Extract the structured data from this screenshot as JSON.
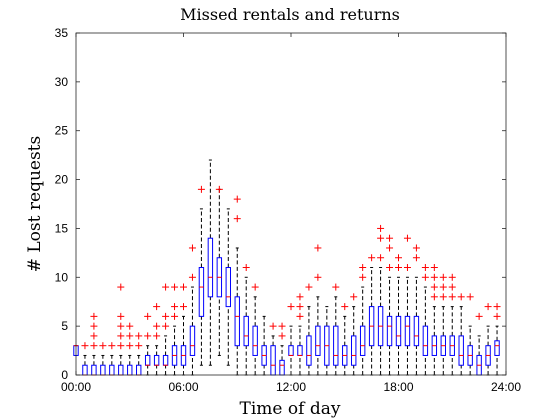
{
  "chart_data": {
    "type": "boxplot",
    "title": "Missed rentals and returns",
    "xlabel": "Time of day",
    "ylabel": "# Lost requests",
    "xlim": [
      0,
      24
    ],
    "ylim": [
      0,
      35
    ],
    "x_ticks": [
      0,
      6,
      12,
      18,
      24
    ],
    "x_tick_labels": [
      "00:00",
      "06:00",
      "12:00",
      "18:00",
      "24:00"
    ],
    "y_ticks": [
      0,
      5,
      10,
      15,
      20,
      25,
      30,
      35
    ],
    "y_tick_labels": [
      "0",
      "5",
      "10",
      "15",
      "20",
      "25",
      "30",
      "35"
    ],
    "grid": false,
    "colors": {
      "box": "#0000ff",
      "median": "#ff0000",
      "whisker": "#000000",
      "outlier": "#ff0000"
    },
    "boxes": [
      {
        "x": 0.0,
        "q1": 2,
        "median": 3,
        "q3": 3,
        "low": 2,
        "high": 3,
        "outliers": []
      },
      {
        "x": 0.5,
        "q1": 0,
        "median": 0,
        "q3": 1,
        "low": 0,
        "high": 2,
        "outliers": [
          3
        ]
      },
      {
        "x": 1.0,
        "q1": 0,
        "median": 0,
        "q3": 1,
        "low": 0,
        "high": 2,
        "outliers": [
          3,
          4,
          5,
          6
        ]
      },
      {
        "x": 1.5,
        "q1": 0,
        "median": 0,
        "q3": 1,
        "low": 0,
        "high": 2,
        "outliers": [
          3
        ]
      },
      {
        "x": 2.0,
        "q1": 0,
        "median": 0,
        "q3": 1,
        "low": 0,
        "high": 2,
        "outliers": [
          3
        ]
      },
      {
        "x": 2.5,
        "q1": 0,
        "median": 0,
        "q3": 1,
        "low": 0,
        "high": 2,
        "outliers": [
          3,
          4,
          5,
          6,
          9
        ]
      },
      {
        "x": 3.0,
        "q1": 0,
        "median": 0,
        "q3": 1,
        "low": 0,
        "high": 2,
        "outliers": [
          3,
          4,
          5
        ]
      },
      {
        "x": 3.5,
        "q1": 0,
        "median": 0,
        "q3": 1,
        "low": 0,
        "high": 2,
        "outliers": [
          3,
          4
        ]
      },
      {
        "x": 4.0,
        "q1": 1,
        "median": 1,
        "q3": 2,
        "low": 0,
        "high": 3,
        "outliers": [
          4,
          6
        ]
      },
      {
        "x": 4.5,
        "q1": 1,
        "median": 1,
        "q3": 2,
        "low": 0,
        "high": 3,
        "outliers": [
          4,
          5,
          7
        ]
      },
      {
        "x": 5.0,
        "q1": 1,
        "median": 1,
        "q3": 2,
        "low": 0,
        "high": 4,
        "outliers": [
          5,
          6,
          9
        ]
      },
      {
        "x": 5.5,
        "q1": 1,
        "median": 2,
        "q3": 3,
        "low": 0,
        "high": 5,
        "outliers": [
          6,
          7,
          9
        ]
      },
      {
        "x": 6.0,
        "q1": 1,
        "median": 2,
        "q3": 3,
        "low": 0,
        "high": 6,
        "outliers": [
          7,
          9
        ]
      },
      {
        "x": 6.5,
        "q1": 2,
        "median": 3,
        "q3": 5,
        "low": 0,
        "high": 9,
        "outliers": [
          10,
          13
        ]
      },
      {
        "x": 7.0,
        "q1": 6,
        "median": 9,
        "q3": 11,
        "low": 1,
        "high": 17,
        "outliers": [
          19
        ]
      },
      {
        "x": 7.5,
        "q1": 8,
        "median": 10,
        "q3": 14,
        "low": 1,
        "high": 22,
        "outliers": []
      },
      {
        "x": 8.0,
        "q1": 8,
        "median": 10,
        "q3": 12,
        "low": 2,
        "high": 19,
        "outliers": [
          19
        ]
      },
      {
        "x": 8.5,
        "q1": 7,
        "median": 8,
        "q3": 11,
        "low": 1,
        "high": 17,
        "outliers": []
      },
      {
        "x": 9.0,
        "q1": 3,
        "median": 6,
        "q3": 8,
        "low": 0,
        "high": 13,
        "outliers": [
          16,
          18
        ]
      },
      {
        "x": 9.5,
        "q1": 3,
        "median": 4,
        "q3": 6,
        "low": 0,
        "high": 10,
        "outliers": [
          11
        ]
      },
      {
        "x": 10.0,
        "q1": 2,
        "median": 3,
        "q3": 5,
        "low": 0,
        "high": 8,
        "outliers": [
          9
        ]
      },
      {
        "x": 10.5,
        "q1": 1,
        "median": 2,
        "q3": 3,
        "low": 0,
        "high": 6,
        "outliers": []
      },
      {
        "x": 11.0,
        "q1": 0,
        "median": 1,
        "q3": 3,
        "low": 0,
        "high": 4,
        "outliers": [
          5
        ]
      },
      {
        "x": 11.5,
        "q1": 0,
        "median": 1,
        "q3": 1.5,
        "low": 0,
        "high": 3,
        "outliers": [
          4,
          5
        ]
      },
      {
        "x": 12.0,
        "q1": 2,
        "median": 2,
        "q3": 3,
        "low": 0,
        "high": 5,
        "outliers": [
          7
        ]
      },
      {
        "x": 12.5,
        "q1": 2,
        "median": 2,
        "q3": 3,
        "low": 0,
        "high": 5,
        "outliers": [
          6,
          7,
          8
        ]
      },
      {
        "x": 13.0,
        "q1": 1,
        "median": 2,
        "q3": 4,
        "low": 0,
        "high": 7,
        "outliers": [
          9
        ]
      },
      {
        "x": 13.5,
        "q1": 2,
        "median": 3,
        "q3": 5,
        "low": 0,
        "high": 8,
        "outliers": [
          10,
          13
        ]
      },
      {
        "x": 14.0,
        "q1": 1,
        "median": 3,
        "q3": 5,
        "low": 0,
        "high": 7,
        "outliers": []
      },
      {
        "x": 14.5,
        "q1": 1,
        "median": 2,
        "q3": 5,
        "low": 0,
        "high": 8,
        "outliers": [
          9
        ]
      },
      {
        "x": 15.0,
        "q1": 1,
        "median": 2,
        "q3": 3,
        "low": 0,
        "high": 6,
        "outliers": [
          7
        ]
      },
      {
        "x": 15.5,
        "q1": 1,
        "median": 2,
        "q3": 4,
        "low": 0,
        "high": 7,
        "outliers": [
          8
        ]
      },
      {
        "x": 16.0,
        "q1": 2,
        "median": 3,
        "q3": 5,
        "low": 0,
        "high": 9,
        "outliers": [
          10,
          11
        ]
      },
      {
        "x": 16.5,
        "q1": 3,
        "median": 5,
        "q3": 7,
        "low": 0,
        "high": 11,
        "outliers": [
          12
        ]
      },
      {
        "x": 17.0,
        "q1": 3,
        "median": 5,
        "q3": 7,
        "low": 0,
        "high": 11,
        "outliers": [
          12,
          14,
          15
        ]
      },
      {
        "x": 17.5,
        "q1": 3,
        "median": 5,
        "q3": 6,
        "low": 0,
        "high": 10,
        "outliers": [
          11,
          13,
          14
        ]
      },
      {
        "x": 18.0,
        "q1": 3,
        "median": 4,
        "q3": 6,
        "low": 0,
        "high": 10,
        "outliers": [
          11,
          12
        ]
      },
      {
        "x": 18.5,
        "q1": 3,
        "median": 5,
        "q3": 6,
        "low": 0,
        "high": 10,
        "outliers": [
          11,
          14
        ]
      },
      {
        "x": 19.0,
        "q1": 3,
        "median": 4,
        "q3": 6,
        "low": 0,
        "high": 10,
        "outliers": [
          12,
          13
        ]
      },
      {
        "x": 19.5,
        "q1": 2,
        "median": 3,
        "q3": 5,
        "low": 0,
        "high": 9,
        "outliers": [
          10,
          11
        ]
      },
      {
        "x": 20.0,
        "q1": 2,
        "median": 3,
        "q3": 4,
        "low": 0,
        "high": 7,
        "outliers": [
          8,
          9,
          10,
          11
        ]
      },
      {
        "x": 20.5,
        "q1": 2,
        "median": 3,
        "q3": 4,
        "low": 0,
        "high": 7,
        "outliers": [
          8,
          9,
          10
        ]
      },
      {
        "x": 21.0,
        "q1": 2,
        "median": 3,
        "q3": 4,
        "low": 0,
        "high": 7,
        "outliers": [
          8,
          9,
          10
        ]
      },
      {
        "x": 21.5,
        "q1": 1,
        "median": 2,
        "q3": 4,
        "low": 0,
        "high": 7,
        "outliers": [
          8
        ]
      },
      {
        "x": 22.0,
        "q1": 1,
        "median": 2,
        "q3": 3,
        "low": 0,
        "high": 5,
        "outliers": [
          8
        ]
      },
      {
        "x": 22.5,
        "q1": 0,
        "median": 1,
        "q3": 2,
        "low": 0,
        "high": 4,
        "outliers": [
          6
        ]
      },
      {
        "x": 23.0,
        "q1": 1,
        "median": 2,
        "q3": 3,
        "low": 0,
        "high": 5,
        "outliers": [
          7
        ]
      },
      {
        "x": 23.5,
        "q1": 2,
        "median": 3,
        "q3": 3.5,
        "low": 0,
        "high": 5,
        "outliers": [
          6,
          7
        ]
      }
    ]
  }
}
